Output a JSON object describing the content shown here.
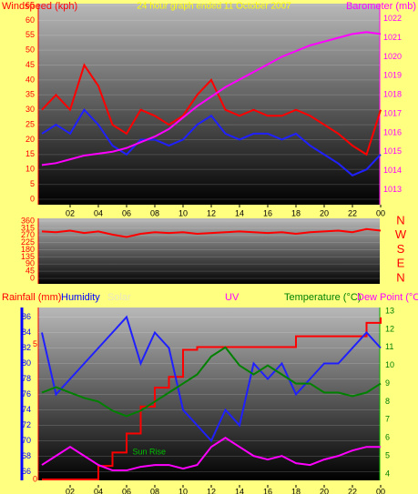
{
  "chart_data": [
    {
      "type": "line",
      "title": "24 hour graph ended 11 October 2007",
      "ylabel": "Windspeed (kph)",
      "y2label": "Barometer (mb)",
      "xlim": [
        0,
        24
      ],
      "xticks": [
        {
          "value": 2,
          "label": "02"
        },
        {
          "value": 4,
          "label": "04"
        },
        {
          "value": 6,
          "label": "06"
        },
        {
          "value": 8,
          "label": "08"
        },
        10,
        12,
        14,
        16,
        18,
        20,
        22,
        {
          "value": 24,
          "label": "00"
        }
      ],
      "ylim": [
        0,
        65
      ],
      "yticks": [
        0,
        5,
        10,
        15,
        20,
        25,
        30,
        35,
        40,
        45,
        50,
        55,
        60,
        65
      ],
      "y2lim": [
        1012.5,
        1022.7
      ],
      "y2ticks": [
        1013,
        1014,
        1015,
        1016,
        1017,
        1018,
        1019,
        1020,
        1021,
        1022
      ],
      "grid": true,
      "x": [
        0,
        1,
        2,
        3,
        4,
        5,
        6,
        7,
        8,
        9,
        10,
        11,
        12,
        13,
        14,
        15,
        16,
        17,
        18,
        19,
        20,
        21,
        22,
        23,
        24
      ],
      "series": [
        {
          "color": "#ff0000",
          "values": [
            30,
            35,
            30,
            45,
            38,
            25,
            22,
            30,
            28,
            25,
            28,
            35,
            40,
            30,
            28,
            30,
            28,
            28,
            30,
            28,
            25,
            22,
            18,
            15,
            30
          ]
        },
        {
          "color": "#2020ff",
          "values": [
            22,
            25,
            22,
            30,
            25,
            18,
            15,
            20,
            20,
            18,
            20,
            25,
            28,
            22,
            20,
            22,
            22,
            20,
            22,
            18,
            15,
            12,
            8,
            10,
            15
          ]
        },
        {
          "color": "#ff00ff",
          "axis": "y2",
          "values": [
            1014.3,
            1014.4,
            1014.6,
            1014.8,
            1014.9,
            1015.0,
            1015.2,
            1015.5,
            1015.8,
            1016.2,
            1016.8,
            1017.4,
            1017.9,
            1018.4,
            1018.8,
            1019.2,
            1019.6,
            1020.0,
            1020.3,
            1020.6,
            1020.8,
            1021.0,
            1021.2,
            1021.3,
            1021.2
          ]
        }
      ]
    },
    {
      "type": "line",
      "xlim": [
        0,
        24
      ],
      "ylim": [
        0,
        360
      ],
      "yticks": [
        0,
        45,
        90,
        135,
        180,
        225,
        270,
        315,
        360
      ],
      "y2lim": [
        0,
        360
      ],
      "y2ticks": [
        {
          "value": 360,
          "label": "N"
        },
        {
          "value": 270,
          "label": "W"
        },
        {
          "value": 180,
          "label": "S"
        },
        {
          "value": 90,
          "label": "E"
        },
        {
          "value": 0,
          "label": "N"
        }
      ],
      "grid": true,
      "x": [
        0,
        1,
        2,
        3,
        4,
        5,
        6,
        7,
        8,
        9,
        10,
        11,
        12,
        13,
        14,
        15,
        16,
        17,
        18,
        19,
        20,
        21,
        22,
        23,
        24
      ],
      "series": [
        {
          "color": "#ff0000",
          "values": [
            295,
            290,
            300,
            285,
            295,
            275,
            260,
            280,
            290,
            285,
            290,
            280,
            285,
            290,
            295,
            290,
            285,
            290,
            280,
            290,
            295,
            300,
            290,
            310,
            300
          ]
        }
      ]
    },
    {
      "type": "line",
      "xlim": [
        0,
        24
      ],
      "xticks": [
        {
          "value": 2,
          "label": "02"
        },
        {
          "value": 4,
          "label": "04"
        },
        {
          "value": 6,
          "label": "06"
        },
        {
          "value": 8,
          "label": "08"
        },
        10,
        12,
        14,
        16,
        18,
        20,
        22,
        {
          "value": 24,
          "label": "00"
        }
      ],
      "ylim": [
        65,
        87
      ],
      "yticks": [
        66,
        68,
        70,
        72,
        74,
        76,
        78,
        80,
        82,
        84,
        86
      ],
      "y2lim": [
        3.7,
        13.1
      ],
      "y2ticks": [
        4,
        5,
        6,
        7,
        8,
        9,
        10,
        11,
        12,
        13
      ],
      "y3lim": [
        0,
        6.3
      ],
      "y3ticks": [
        0,
        5
      ],
      "grid": true,
      "other_labels": [
        "Solar",
        "UV"
      ],
      "annotations": [
        {
          "text": "Sun Rise",
          "x": 7.6,
          "y": 68.5
        }
      ],
      "x": [
        0,
        1,
        2,
        3,
        4,
        5,
        6,
        7,
        8,
        9,
        10,
        11,
        12,
        13,
        14,
        15,
        16,
        17,
        18,
        19,
        20,
        21,
        22,
        23,
        24
      ],
      "series": [
        {
          "name": "Rainfall (mm)",
          "color": "#ff0000",
          "axis": "y3",
          "step": true,
          "values": [
            0,
            0,
            0,
            0,
            0.5,
            1,
            1.7,
            2.7,
            3.4,
            3.8,
            4.8,
            4.9,
            4.9,
            4.9,
            4.9,
            4.9,
            4.9,
            4.9,
            5.3,
            5.3,
            5.3,
            5.3,
            5.3,
            5.8,
            6.0
          ]
        },
        {
          "name": "Humidity",
          "color": "#2020ff",
          "values": [
            84,
            76,
            78,
            80,
            82,
            84,
            86,
            80,
            84,
            82,
            74,
            72,
            70,
            74,
            72,
            80,
            78,
            80,
            76,
            78,
            80,
            80,
            82,
            84,
            82
          ]
        },
        {
          "name": "Temperature (°C)",
          "color": "#008000",
          "axis": "y2",
          "values": [
            8.5,
            8.8,
            8.5,
            8.2,
            8.0,
            7.5,
            7.2,
            7.5,
            8.0,
            8.5,
            9.0,
            9.5,
            10.5,
            11.0,
            10.0,
            9.5,
            10.0,
            9.5,
            9.0,
            9.0,
            8.5,
            8.5,
            8.3,
            8.5,
            9.0
          ]
        },
        {
          "name": "Dew Point (°C)",
          "color": "#ff00ff",
          "axis": "y2",
          "values": [
            4.5,
            5.0,
            5.5,
            5.0,
            4.5,
            4.2,
            4.2,
            4.4,
            4.5,
            4.5,
            4.3,
            4.5,
            5.5,
            6.0,
            5.5,
            5.0,
            4.8,
            5.0,
            4.6,
            4.5,
            4.8,
            5.0,
            5.3,
            5.5,
            5.5
          ]
        }
      ]
    }
  ]
}
